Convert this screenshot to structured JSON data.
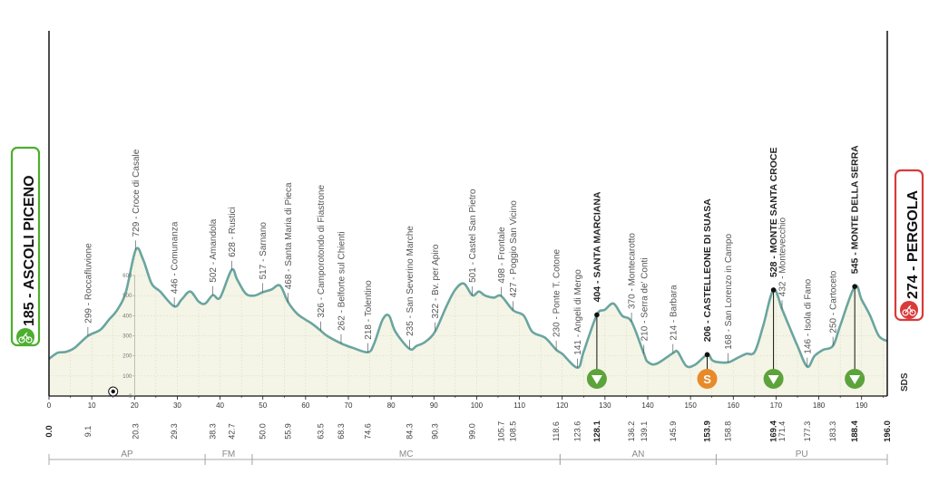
{
  "chart_data": {
    "type": "area",
    "title": "",
    "xlabel": "",
    "ylabel": "",
    "xlim": [
      0,
      196
    ],
    "ylim": [
      0,
      800
    ],
    "altitude_ticks": [
      "600",
      "500",
      "400",
      "300",
      "200",
      "100",
      "0"
    ],
    "km_ticks": [
      0,
      10,
      20,
      30,
      40,
      50,
      60,
      70,
      80,
      90,
      100,
      110,
      120,
      130,
      140,
      150,
      160,
      170,
      180,
      190
    ],
    "start": {
      "altitude": "185",
      "name": "ASCOLI PICENO",
      "km": 0,
      "km_label": "0.0"
    },
    "finish": {
      "altitude": "274",
      "name": "PERGOLA",
      "km": 196,
      "km_label": "196.0"
    },
    "profile": [
      [
        0,
        185
      ],
      [
        2,
        215
      ],
      [
        4,
        220
      ],
      [
        6,
        240
      ],
      [
        9.1,
        299
      ],
      [
        12,
        330
      ],
      [
        14,
        380
      ],
      [
        16,
        430
      ],
      [
        18,
        520
      ],
      [
        20.3,
        729
      ],
      [
        22,
        680
      ],
      [
        24,
        560
      ],
      [
        26,
        520
      ],
      [
        29.3,
        446
      ],
      [
        31,
        480
      ],
      [
        33,
        520
      ],
      [
        35,
        470
      ],
      [
        36.5,
        460
      ],
      [
        38.3,
        502
      ],
      [
        40,
        490
      ],
      [
        42.7,
        628
      ],
      [
        44,
        580
      ],
      [
        46,
        510
      ],
      [
        48,
        500
      ],
      [
        50,
        517
      ],
      [
        52,
        530
      ],
      [
        54,
        550
      ],
      [
        55.9,
        468
      ],
      [
        58,
        410
      ],
      [
        60,
        380
      ],
      [
        61.5,
        360
      ],
      [
        63.5,
        326
      ],
      [
        65,
        300
      ],
      [
        68.3,
        262
      ],
      [
        71,
        240
      ],
      [
        74.6,
        218
      ],
      [
        76,
        260
      ],
      [
        78,
        380
      ],
      [
        79.5,
        400
      ],
      [
        81,
        320
      ],
      [
        84.3,
        235
      ],
      [
        86,
        250
      ],
      [
        88,
        270
      ],
      [
        90.3,
        322
      ],
      [
        93,
        450
      ],
      [
        95,
        530
      ],
      [
        97,
        560
      ],
      [
        99,
        501
      ],
      [
        100.5,
        520
      ],
      [
        102,
        500
      ],
      [
        104,
        490
      ],
      [
        105.7,
        498
      ],
      [
        108.5,
        427
      ],
      [
        111,
        400
      ],
      [
        113,
        320
      ],
      [
        116,
        290
      ],
      [
        118.6,
        230
      ],
      [
        120,
        210
      ],
      [
        123.6,
        141
      ],
      [
        125,
        220
      ],
      [
        128.1,
        404
      ],
      [
        130,
        430
      ],
      [
        132,
        460
      ],
      [
        134,
        400
      ],
      [
        136.2,
        370
      ],
      [
        139.1,
        210
      ],
      [
        140,
        170
      ],
      [
        142,
        160
      ],
      [
        145.9,
        214
      ],
      [
        147,
        220
      ],
      [
        149,
        150
      ],
      [
        151,
        155
      ],
      [
        153.9,
        206
      ],
      [
        155,
        180
      ],
      [
        156,
        170
      ],
      [
        158.8,
        168
      ],
      [
        161,
        190
      ],
      [
        163,
        210
      ],
      [
        165,
        220
      ],
      [
        167,
        350
      ],
      [
        169.4,
        528
      ],
      [
        171.4,
        432
      ],
      [
        173,
        350
      ],
      [
        175,
        250
      ],
      [
        177.3,
        146
      ],
      [
        179,
        200
      ],
      [
        181,
        230
      ],
      [
        183.3,
        250
      ],
      [
        185,
        350
      ],
      [
        188.4,
        545
      ],
      [
        190,
        480
      ],
      [
        192,
        400
      ],
      [
        194,
        300
      ],
      [
        196,
        274
      ]
    ],
    "waypoints": [
      {
        "km": 9.1,
        "alt": 299,
        "name": "Roccafluvione",
        "label": "299 - Roccafluvione",
        "km_label": "9.1"
      },
      {
        "km": 20.3,
        "alt": 729,
        "name": "Croce di Casale",
        "label": "729 - Croce di Casale",
        "km_label": "20.3"
      },
      {
        "km": 29.3,
        "alt": 446,
        "name": "Comunanza",
        "label": "446 - Comunanza",
        "km_label": "29.3"
      },
      {
        "km": 38.3,
        "alt": 502,
        "name": "Amandola",
        "label": "502 - Amandola",
        "km_label": "38.3"
      },
      {
        "km": 42.7,
        "alt": 628,
        "name": "Rustici",
        "label": "628 - Rustici",
        "km_label": "42.7"
      },
      {
        "km": 50.0,
        "alt": 517,
        "name": "Sarnano",
        "label": "517 - Sarnano",
        "km_label": "50.0"
      },
      {
        "km": 55.9,
        "alt": 468,
        "name": "Santa Maria di Pieca",
        "label": "468 - Santa Maria di Pieca",
        "km_label": "55.9"
      },
      {
        "km": 63.5,
        "alt": 326,
        "name": "Camporotondo di Fiastrone",
        "label": "326 - Camporotondo di Fiastrone",
        "km_label": "63.5"
      },
      {
        "km": 68.3,
        "alt": 262,
        "name": "Belforte sul Chienti",
        "label": "262 - Belforte sul Chienti",
        "km_label": "68.3"
      },
      {
        "km": 74.6,
        "alt": 218,
        "name": "Tolentino",
        "label": "218 - Tolentino",
        "km_label": "74.6"
      },
      {
        "km": 84.3,
        "alt": 235,
        "name": "San Severino Marche",
        "label": "235 - San Severino Marche",
        "km_label": "84.3"
      },
      {
        "km": 90.3,
        "alt": 322,
        "name": "Bv. per Apiro",
        "label": "322 - Bv. per Apiro",
        "km_label": "90.3"
      },
      {
        "km": 99.0,
        "alt": 501,
        "name": "Castel San Pietro",
        "label": "501 - Castel San Pietro",
        "km_label": "99.0"
      },
      {
        "km": 105.7,
        "alt": 498,
        "name": "Frontale",
        "label": "498 - Frontale",
        "km_label": "105.7"
      },
      {
        "km": 108.5,
        "alt": 427,
        "name": "Poggio San Vicino",
        "label": "427 - Poggio San Vicino",
        "km_label": "108.5"
      },
      {
        "km": 118.6,
        "alt": 230,
        "name": "Ponte T. Cotone",
        "label": "230 - Ponte T. Cotone",
        "km_label": "118.6"
      },
      {
        "km": 123.6,
        "alt": 141,
        "name": "Angeli di Mergo",
        "label": "141 - Angeli di Mergo",
        "km_label": "123.6"
      },
      {
        "km": 128.1,
        "alt": 404,
        "name": "SANTA MARCIANA",
        "label": "404 - SANTA MARCIANA",
        "km_label": "128.1",
        "bold": true,
        "marker": "gpm"
      },
      {
        "km": 136.2,
        "alt": 370,
        "name": "Montecarotto",
        "label": "370 - Montecarotto",
        "km_label": "136.2"
      },
      {
        "km": 139.1,
        "alt": 210,
        "name": "Serra de' Conti",
        "label": "210 - Serra de' Conti",
        "km_label": "139.1"
      },
      {
        "km": 145.9,
        "alt": 214,
        "name": "Barbara",
        "label": "214 - Barbara",
        "km_label": "145.9"
      },
      {
        "km": 153.9,
        "alt": 206,
        "name": "CASTELLEONE DI SUASA",
        "label": "206 - CASTELLEONE DI SUASA",
        "km_label": "153.9",
        "bold": true,
        "marker": "sprint"
      },
      {
        "km": 158.8,
        "alt": 168,
        "name": "San Lorenzo in Campo",
        "label": "168 - San Lorenzo in Campo",
        "km_label": "158.8"
      },
      {
        "km": 169.4,
        "alt": 528,
        "name": "MONTE SANTA CROCE",
        "label": "528 - MONTE SANTA CROCE",
        "km_label": "169.4",
        "bold": true,
        "marker": "gpm"
      },
      {
        "km": 171.4,
        "alt": 432,
        "name": "Montevecchio",
        "label": "432 - Montevecchio",
        "km_label": "171.4"
      },
      {
        "km": 177.3,
        "alt": 146,
        "name": "Isola di Fano",
        "label": "146 - Isola di Fano",
        "km_label": "177.3"
      },
      {
        "km": 183.3,
        "alt": 250,
        "name": "Cartoceto",
        "label": "250 - Cartoceto",
        "km_label": "183.3"
      },
      {
        "km": 188.4,
        "alt": 545,
        "name": "MONTE DELLA SERRA",
        "label": "545 - MONTE DELLA SERRA",
        "km_label": "188.4",
        "bold": true,
        "marker": "gpm"
      }
    ],
    "regions": [
      {
        "name": "AP",
        "from": 0,
        "to": 36.5
      },
      {
        "name": "FM",
        "from": 36.5,
        "to": 47.5
      },
      {
        "name": "MC",
        "from": 47.5,
        "to": 119.5
      },
      {
        "name": "AN",
        "from": 119.5,
        "to": 156
      },
      {
        "name": "PU",
        "from": 156,
        "to": 196
      }
    ],
    "sprint_icon_text": "S",
    "feed_zone_km": 15,
    "colors": {
      "profile_line": "#6aa5a0",
      "profile_fill": "#f4f5e6",
      "grid": "#c8cdb0",
      "gpm": "#5ca33b",
      "sprint": "#e88a2a",
      "start": "#4caf2e",
      "finish": "#d93a3a"
    },
    "logo_text": "SDS"
  }
}
